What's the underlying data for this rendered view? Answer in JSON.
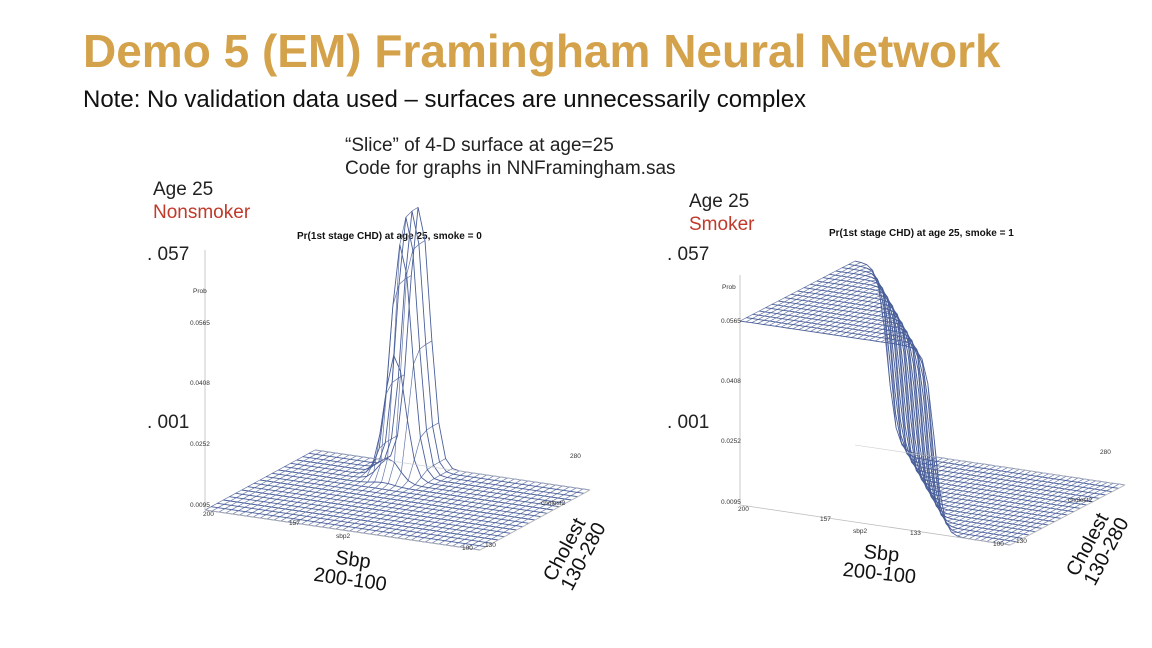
{
  "slide": {
    "title": "Demo 5 (EM) Framingham Neural Network",
    "note": "Note:  No validation data used – surfaces are unnecessarily complex",
    "caption_line1": "“Slice” of 4-D surface at age=25",
    "caption_line2": "Code for graphs in NNFramingham.sas"
  },
  "colors": {
    "title": "#d4a24a",
    "mesh": "#4a5f9a",
    "highlight": "#c0392b"
  },
  "chart_data": [
    {
      "type": "surface",
      "title": "Pr(1st stage CHD) at age 25, smoke = 0",
      "group_label_line1": "Age 25",
      "group_label_line2": "Nonsmoker",
      "zlabel": "Prob",
      "z_ticks": [
        "0.0565",
        "0.0408",
        "0.0252",
        "0.0095"
      ],
      "x_ticks": [
        "200",
        "157",
        "100"
      ],
      "x_axis_name": "sbp2",
      "y_ticks": [
        "280",
        "130"
      ],
      "y_axis_name": "cholest2",
      "annot_high": ". 057",
      "annot_low": ". 001",
      "sbp_label_line1": "Sbp",
      "sbp_label_line2": "200-100",
      "chol_label_line1": "Cholest",
      "chol_label_line2": "130-280",
      "peak_prob": 0.057,
      "floor_prob": 0.001,
      "description_of_shape": "narrow spike"
    },
    {
      "type": "surface",
      "title": "Pr(1st stage CHD) at age 25, smoke = 1",
      "group_label_line1": "Age 25",
      "group_label_line2": "Smoker",
      "zlabel": "Prob",
      "z_ticks": [
        "0.0565",
        "0.0408",
        "0.0252",
        "0.0095"
      ],
      "x_ticks": [
        "200",
        "157",
        "133",
        "100"
      ],
      "x_axis_name": "sbp2",
      "y_ticks": [
        "280",
        "130"
      ],
      "y_axis_name": "cholest2",
      "annot_high": ". 057",
      "annot_low": ". 001",
      "sbp_label_line1": "Sbp",
      "sbp_label_line2": "200-100",
      "chol_label_line1": "Cholest",
      "chol_label_line2": "130-280",
      "peak_prob": 0.057,
      "floor_prob": 0.001,
      "description_of_shape": "step plateau"
    }
  ]
}
